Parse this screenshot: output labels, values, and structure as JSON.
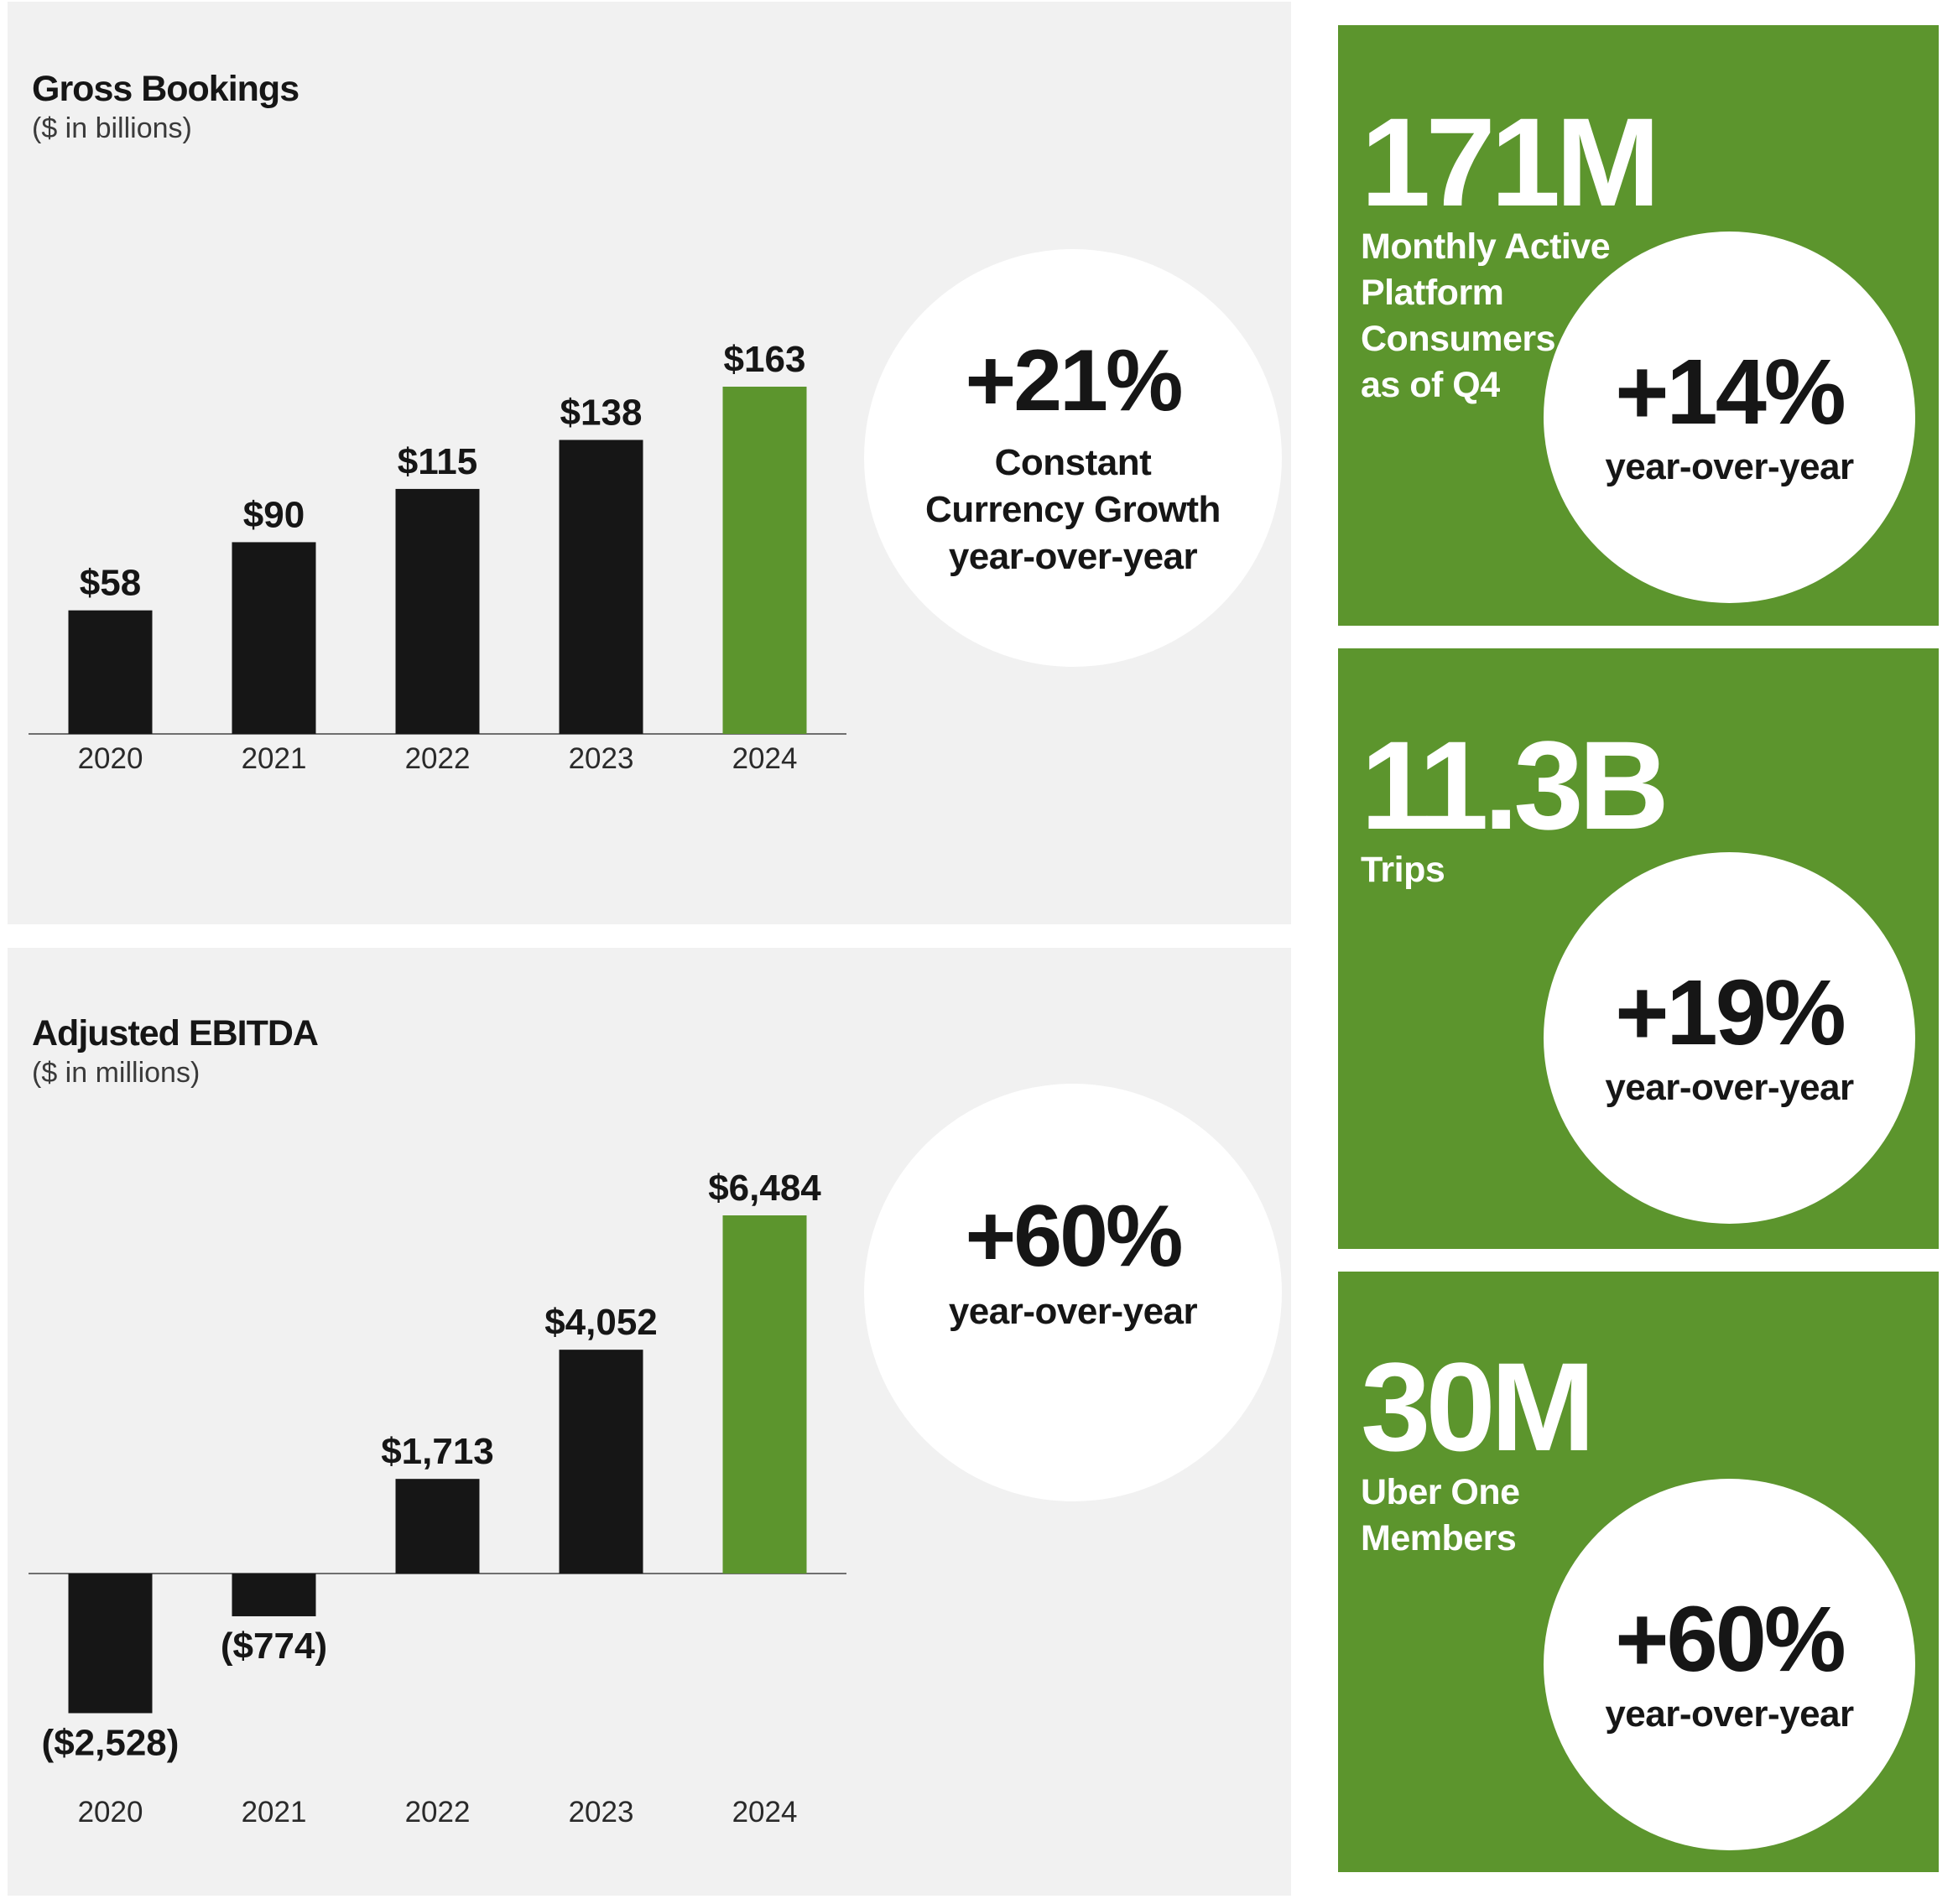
{
  "gross_bookings": {
    "title": "Gross Bookings",
    "subtitle": "($ in billions)",
    "growth": {
      "value": "+21%",
      "lines": [
        "Constant",
        "Currency Growth",
        "year-over-year"
      ]
    }
  },
  "adjusted_ebitda": {
    "title": "Adjusted EBITDA",
    "subtitle": "($ in millions)",
    "growth": {
      "value": "+60%",
      "lines": [
        "year-over-year"
      ]
    }
  },
  "chart_data": [
    {
      "type": "bar",
      "title": "Gross Bookings",
      "subtitle": "($ in billions)",
      "categories": [
        "2020",
        "2021",
        "2022",
        "2023",
        "2024"
      ],
      "values": [
        58,
        90,
        115,
        138,
        163
      ],
      "labels": [
        "$58",
        "$90",
        "$115",
        "$138",
        "$163"
      ],
      "highlight_index": 4,
      "ylim": [
        0,
        163
      ],
      "xlabel": "",
      "ylabel": "",
      "grid": false
    },
    {
      "type": "bar",
      "title": "Adjusted EBITDA",
      "subtitle": "($ in millions)",
      "categories": [
        "2020",
        "2021",
        "2022",
        "2023",
        "2024"
      ],
      "values": [
        -2528,
        -774,
        1713,
        4052,
        6484
      ],
      "labels": [
        "($2,528)",
        "($774)",
        "$1,713",
        "$4,052",
        "$6,484"
      ],
      "highlight_index": 4,
      "ylim": [
        -2528,
        6484
      ],
      "xlabel": "",
      "ylabel": "",
      "grid": false
    }
  ],
  "cards": [
    {
      "value": "171M",
      "label_lines": [
        "Monthly Active",
        "Platform",
        "Consumers",
        "as of Q4"
      ],
      "growth": "+14%",
      "growth_label": "year-over-year"
    },
    {
      "value": "11.3B",
      "label_lines": [
        "Trips"
      ],
      "growth": "+19%",
      "growth_label": "year-over-year"
    },
    {
      "value": "30M",
      "label_lines": [
        "Uber One",
        "Members"
      ],
      "growth": "+60%",
      "growth_label": "year-over-year"
    }
  ],
  "colors": {
    "bar": "#161616",
    "highlight": "#5c952d",
    "card_bg": "#5c952d",
    "panel_bg": "#f1f1f1"
  }
}
